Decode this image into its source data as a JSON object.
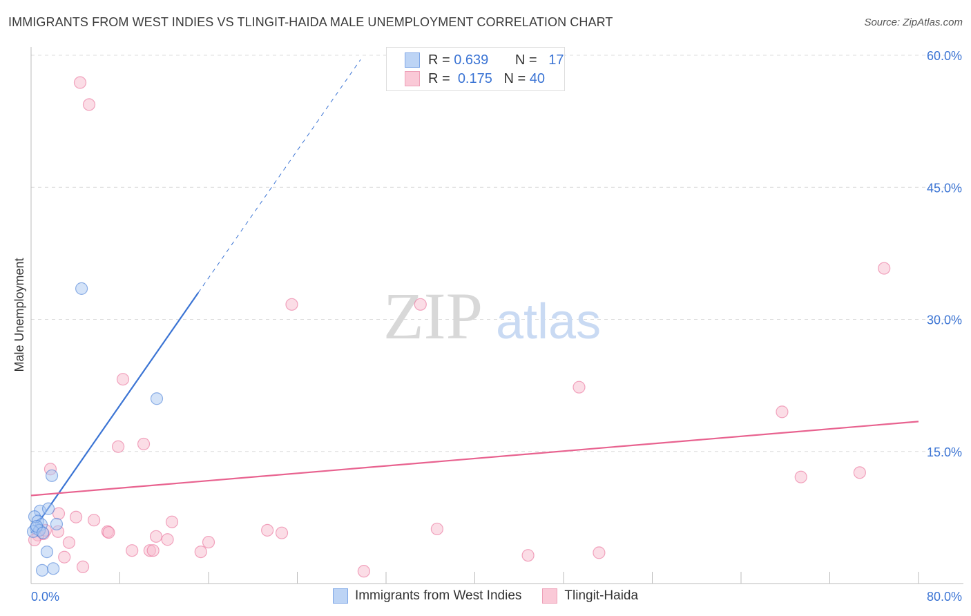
{
  "title": "IMMIGRANTS FROM WEST INDIES VS TLINGIT-HAIDA MALE UNEMPLOYMENT CORRELATION CHART",
  "source": "Source: ZipAtlas.com",
  "watermark": {
    "zip": "ZIP",
    "atlas": "atlas"
  },
  "legend": {
    "rows": [
      {
        "r_label": "R =",
        "r_value": "0.639",
        "n_label": "N =",
        "n_value": "17"
      },
      {
        "r_label": "R =",
        "r_value": "0.175",
        "n_label": "N =",
        "n_value": "40"
      }
    ]
  },
  "chart_data": {
    "type": "scatter",
    "title": "IMMIGRANTS FROM WEST INDIES VS TLINGIT-HAIDA MALE UNEMPLOYMENT CORRELATION CHART",
    "xlabel": "",
    "ylabel": "Male Unemployment",
    "xlim": [
      0,
      80
    ],
    "ylim": [
      0,
      60
    ],
    "x_tick_labels": [
      "0.0%",
      "80.0%"
    ],
    "y_ticks": [
      15,
      30,
      45,
      60
    ],
    "y_tick_labels": [
      "15.0%",
      "30.0%",
      "45.0%",
      "60.0%"
    ],
    "grid": true,
    "legend_placement": "bottom-center",
    "series": [
      {
        "name": "Immigrants from West Indies",
        "color": "#3b74d4",
        "fill": "#aac8f2",
        "R": 0.639,
        "N": 17,
        "trend": {
          "x0": 0,
          "y0": 5.75,
          "x_solid_end": 15.07,
          "x1": 29.7,
          "slope": 1.81
        },
        "points": [
          [
            4.55,
            33.5
          ],
          [
            11.33,
            21.0
          ],
          [
            1.87,
            12.25
          ],
          [
            0.81,
            8.25
          ],
          [
            0.31,
            7.6
          ],
          [
            1.56,
            8.5
          ],
          [
            0.62,
            7.1
          ],
          [
            0.93,
            6.7
          ],
          [
            2.3,
            6.75
          ],
          [
            0.44,
            6.3
          ],
          [
            0.75,
            6.05
          ],
          [
            0.19,
            5.9
          ],
          [
            1.43,
            3.6
          ],
          [
            1.0,
            1.5
          ],
          [
            2.0,
            1.7
          ],
          [
            0.5,
            6.5
          ],
          [
            1.06,
            5.75
          ]
        ]
      },
      {
        "name": "Tlingit-Haida",
        "color": "#e8628f",
        "fill": "#f7bccd",
        "R": 0.175,
        "N": 40,
        "trend": {
          "x0": 0,
          "y0": 10.0,
          "x1": 80,
          "y1": 18.4
        },
        "points": [
          [
            4.42,
            56.9
          ],
          [
            5.23,
            54.4
          ],
          [
            76.9,
            35.8
          ],
          [
            23.5,
            31.7
          ],
          [
            35.1,
            31.7
          ],
          [
            8.28,
            23.2
          ],
          [
            49.4,
            22.3
          ],
          [
            67.7,
            19.5
          ],
          [
            7.85,
            15.55
          ],
          [
            10.15,
            15.85
          ],
          [
            1.74,
            13.0
          ],
          [
            69.4,
            12.1
          ],
          [
            74.7,
            12.6
          ],
          [
            2.49,
            7.95
          ],
          [
            4.05,
            7.55
          ],
          [
            5.67,
            7.2
          ],
          [
            12.7,
            7.0
          ],
          [
            6.9,
            5.9
          ],
          [
            7.0,
            5.8
          ],
          [
            2.43,
            5.9
          ],
          [
            1.12,
            5.65
          ],
          [
            0.62,
            5.5
          ],
          [
            0.31,
            4.95
          ],
          [
            11.27,
            5.35
          ],
          [
            12.3,
            5.0
          ],
          [
            21.3,
            6.05
          ],
          [
            22.6,
            5.75
          ],
          [
            36.6,
            6.2
          ],
          [
            3.42,
            4.65
          ],
          [
            16.0,
            4.7
          ],
          [
            9.1,
            3.75
          ],
          [
            10.7,
            3.75
          ],
          [
            11.0,
            3.75
          ],
          [
            15.3,
            3.6
          ],
          [
            3.0,
            3.0
          ],
          [
            4.67,
            1.9
          ],
          [
            30.0,
            1.4
          ],
          [
            44.8,
            3.2
          ],
          [
            51.2,
            3.5
          ],
          [
            1.3,
            6.05
          ]
        ]
      }
    ]
  }
}
